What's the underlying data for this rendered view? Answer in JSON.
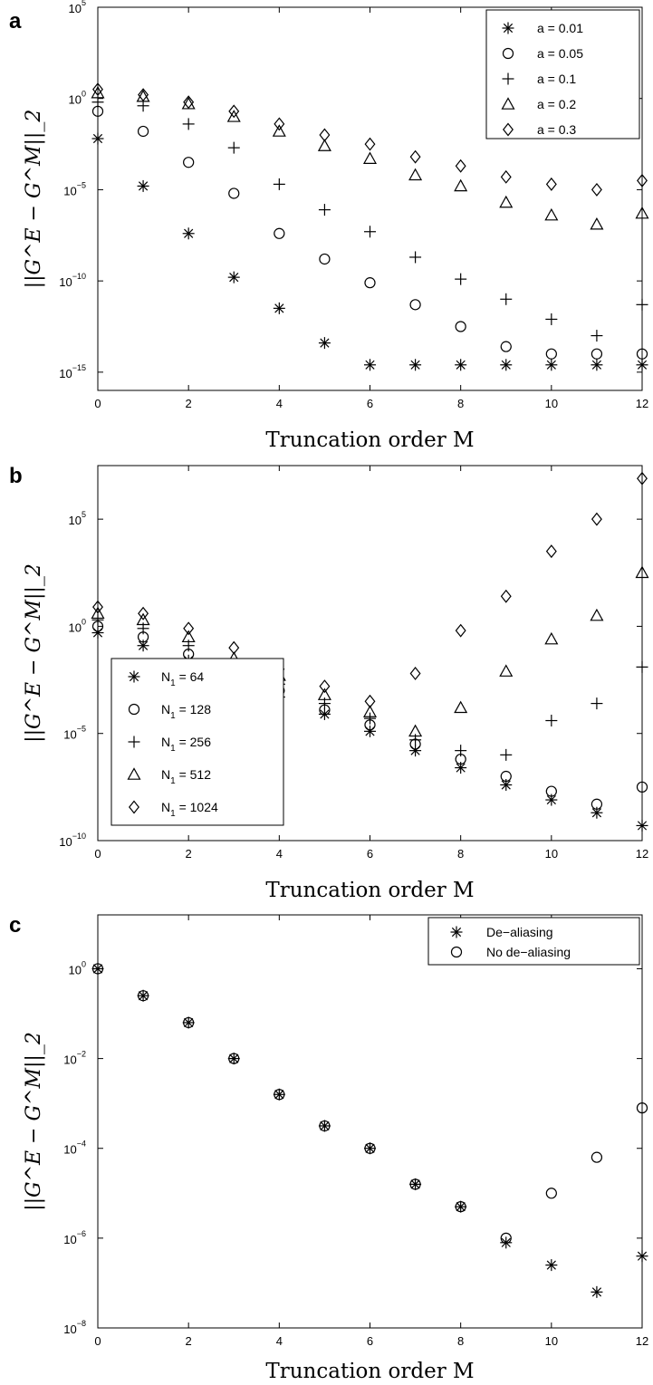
{
  "chart_data": [
    {
      "panel_letter": "a",
      "type": "scatter",
      "xlabel": "Truncation order M",
      "ylabel": "||G^E − G^M||_2",
      "yscale": "log",
      "xlim": [
        0,
        12
      ],
      "ylim_exp": [
        -16,
        5
      ],
      "xticks": [
        "0",
        "2",
        "4",
        "6",
        "8",
        "10",
        "12"
      ],
      "yticks": [
        {
          "base": "10",
          "exp": "0"
        },
        {
          "base": "10",
          "exp": "−5"
        },
        {
          "base": "10",
          "exp": "−10"
        },
        {
          "base": "10",
          "exp": "−15"
        },
        {
          "base": "10",
          "exp": "5"
        }
      ],
      "legend_position": "top-right",
      "x": [
        0,
        1,
        2,
        3,
        4,
        5,
        6,
        7,
        8,
        9,
        10,
        11,
        12
      ],
      "series": [
        {
          "name": "a = 0.01",
          "marker": "asterisk",
          "log10_values": [
            -2.2,
            -4.8,
            -7.4,
            -9.8,
            -11.5,
            -13.4,
            -14.6,
            -14.6,
            -14.6,
            -14.6,
            -14.6,
            -14.6,
            -14.6
          ]
        },
        {
          "name": "a = 0.05",
          "marker": "circle",
          "log10_values": [
            -0.7,
            -1.8,
            -3.5,
            -5.2,
            -7.4,
            -8.8,
            -10.1,
            -11.3,
            -12.5,
            -13.6,
            -14.0,
            -14.0,
            -14.0
          ]
        },
        {
          "name": "a = 0.1",
          "marker": "plus",
          "log10_values": [
            -0.2,
            -0.4,
            -1.4,
            -2.7,
            -4.7,
            -6.1,
            -7.3,
            -8.7,
            -9.9,
            -11.0,
            -12.1,
            -13.0,
            -11.3
          ]
        },
        {
          "name": "a = 0.2",
          "marker": "triangle",
          "log10_values": [
            0.3,
            0.1,
            -0.3,
            -1.0,
            -1.8,
            -2.6,
            -3.3,
            -4.2,
            -4.8,
            -5.7,
            -6.4,
            -6.9,
            -6.3
          ]
        },
        {
          "name": "a = 0.3",
          "marker": "diamond",
          "log10_values": [
            0.5,
            0.2,
            -0.2,
            -0.7,
            -1.4,
            -2.0,
            -2.5,
            -3.2,
            -3.7,
            -4.3,
            -4.7,
            -5.0,
            -4.5
          ]
        }
      ]
    },
    {
      "panel_letter": "b",
      "type": "scatter",
      "xlabel": "Truncation order M",
      "ylabel": "||G^E − G^M||_2",
      "yscale": "log",
      "xlim": [
        0,
        12
      ],
      "ylim_exp": [
        -10,
        7.5
      ],
      "xticks": [
        "0",
        "2",
        "4",
        "6",
        "8",
        "10",
        "12"
      ],
      "yticks": [
        {
          "base": "10",
          "exp": "5"
        },
        {
          "base": "10",
          "exp": "0"
        },
        {
          "base": "10",
          "exp": "−5"
        },
        {
          "base": "10",
          "exp": "−10"
        }
      ],
      "legend_position": "bottom-left",
      "x": [
        0,
        1,
        2,
        3,
        4,
        5,
        6,
        7,
        8,
        9,
        10,
        11,
        12
      ],
      "series": [
        {
          "name": "N₁ = 64",
          "legend_label": "N",
          "legend_sub": "1",
          "legend_suffix": " = 64",
          "marker": "asterisk",
          "log10_values": [
            -0.3,
            -0.9,
            -1.6,
            -2.6,
            -3.3,
            -4.1,
            -4.9,
            -5.8,
            -6.6,
            -7.4,
            -8.1,
            -8.7,
            -9.3
          ]
        },
        {
          "name": "N₁ = 128",
          "legend_label": "N",
          "legend_sub": "1",
          "legend_suffix": " = 128",
          "marker": "circle",
          "log10_values": [
            0.0,
            -0.5,
            -1.3,
            -2.3,
            -3.0,
            -3.9,
            -4.6,
            -5.5,
            -6.2,
            -7.0,
            -7.7,
            -8.3,
            -7.5
          ]
        },
        {
          "name": "N₁ = 256",
          "legend_label": "N",
          "legend_sub": "1",
          "legend_suffix": " = 256",
          "marker": "plus",
          "log10_values": [
            0.3,
            -0.1,
            -0.9,
            -1.9,
            -2.7,
            -3.6,
            -4.3,
            -5.3,
            -5.8,
            -6.0,
            -4.4,
            -3.6,
            -1.9
          ]
        },
        {
          "name": "N₁ = 512",
          "legend_label": "N",
          "legend_sub": "1",
          "legend_suffix": " = 512",
          "marker": "triangle",
          "log10_values": [
            0.6,
            0.3,
            -0.5,
            -1.5,
            -2.3,
            -3.2,
            -4.0,
            -4.9,
            -3.8,
            -2.1,
            -0.6,
            0.5,
            2.5
          ]
        },
        {
          "name": "N₁ = 1024",
          "legend_label": "N",
          "legend_sub": "1",
          "legend_suffix": " = 1024",
          "marker": "diamond",
          "log10_values": [
            0.9,
            0.6,
            -0.1,
            -1.0,
            -2.0,
            -2.8,
            -3.5,
            -2.2,
            -0.2,
            1.4,
            3.5,
            5.0,
            6.9
          ]
        }
      ]
    },
    {
      "panel_letter": "c",
      "type": "scatter",
      "xlabel": "Truncation order M",
      "ylabel": "||G^E − G^M||_2",
      "yscale": "log",
      "xlim": [
        0,
        12
      ],
      "ylim_exp": [
        -8,
        1.2
      ],
      "xticks": [
        "0",
        "2",
        "4",
        "6",
        "8",
        "10",
        "12"
      ],
      "yticks": [
        {
          "base": "10",
          "exp": "0"
        },
        {
          "base": "10",
          "exp": "−2"
        },
        {
          "base": "10",
          "exp": "−4"
        },
        {
          "base": "10",
          "exp": "−6"
        },
        {
          "base": "10",
          "exp": "−8"
        }
      ],
      "legend_position": "top-right",
      "x": [
        0,
        1,
        2,
        3,
        4,
        5,
        6,
        7,
        8,
        9,
        10,
        11,
        12
      ],
      "series": [
        {
          "name": "De−aliasing",
          "marker": "asterisk",
          "log10_values": [
            0.0,
            -0.6,
            -1.2,
            -2.0,
            -2.8,
            -3.5,
            -4.0,
            -4.8,
            -5.3,
            -6.1,
            -6.6,
            -7.2,
            -6.4
          ]
        },
        {
          "name": "No de−aliasing",
          "marker": "circle",
          "log10_values": [
            0.0,
            -0.6,
            -1.2,
            -2.0,
            -2.8,
            -3.5,
            -4.0,
            -4.8,
            -5.3,
            -6.0,
            -5.0,
            -4.2,
            -3.1
          ]
        }
      ]
    }
  ]
}
